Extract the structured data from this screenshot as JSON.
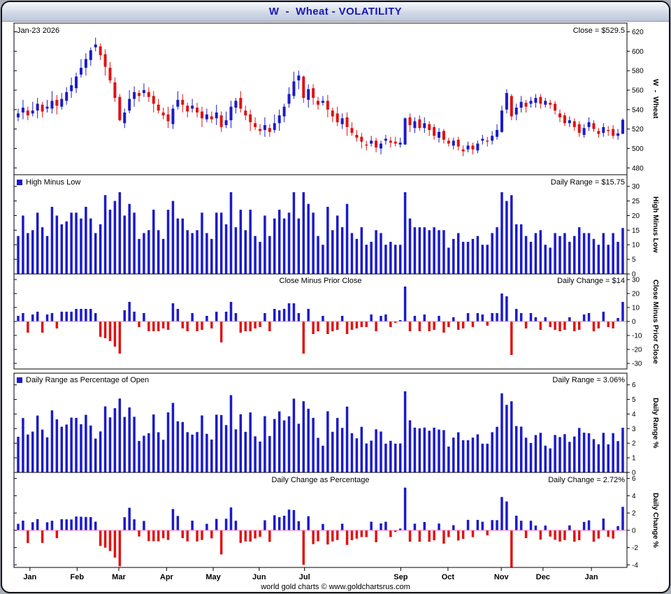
{
  "window": {
    "title": "W  -  Wheat - VOLATILITY"
  },
  "footer": "world gold charts © www.goldchartsrus.com",
  "colors": {
    "up": "#1b1bc8",
    "down": "#e01212",
    "zero_line": "#ff7dbe",
    "title_text": "#1717b8",
    "panel_border": "#000000"
  },
  "panels": {
    "price": {
      "date_label": "Jan-23 2026",
      "value_label": "Close = $529.5",
      "axis_title": "W  -  Wheat",
      "ticks": [
        620,
        600,
        580,
        560,
        540,
        520,
        500,
        480
      ]
    },
    "range": {
      "legend": "High Minus Low",
      "value_label": "Daily Range = $15.75",
      "axis_title": "High Minus Low",
      "ticks": [
        30,
        25,
        20,
        15,
        10,
        5,
        0
      ]
    },
    "change": {
      "legend": "Close Minus Prior Close",
      "value_label": "Daily Change = $14",
      "axis_title": "Close Minus Prior Close",
      "ticks": [
        30,
        20,
        10,
        0,
        -10,
        -20,
        -30
      ]
    },
    "range_pct": {
      "legend": "Daily Range as Percentage of Open",
      "value_label": "Daily Range = 3.06%",
      "axis_title": "Daily Range %",
      "ticks": [
        6,
        5,
        4,
        3,
        2,
        1,
        0
      ]
    },
    "change_pct": {
      "legend": "Daily Change as Percentage",
      "value_label": "Daily Change = 2.72%",
      "axis_title": "Daily Change %",
      "ticks": [
        6,
        4,
        2,
        0,
        -2,
        -4
      ]
    }
  },
  "chart_data": {
    "type": "ohlc-multi-panel",
    "title": "W - Wheat - VOLATILITY",
    "last_date": "Jan-23 2026",
    "last_close": 529.5,
    "months": [
      {
        "label": "Jan",
        "fx": 0.026
      },
      {
        "label": "Feb",
        "fx": 0.103
      },
      {
        "label": "Mar",
        "fx": 0.171
      },
      {
        "label": "Apr",
        "fx": 0.249
      },
      {
        "label": "May",
        "fx": 0.325
      },
      {
        "label": "Jun",
        "fx": 0.4
      },
      {
        "label": "Jul",
        "fx": 0.474
      },
      {
        "label": "Sep",
        "fx": 0.631
      },
      {
        "label": "Oct",
        "fx": 0.708
      },
      {
        "label": "Nov",
        "fx": 0.795
      },
      {
        "label": "Dec",
        "fx": 0.863
      },
      {
        "label": "Jan",
        "fx": 0.942
      }
    ],
    "price_panel": {
      "type": "candlestick",
      "ylim": [
        480,
        620
      ],
      "latest_close": 529.5
    },
    "derived_panels": [
      {
        "name": "High Minus Low",
        "type": "bar",
        "formula": "high - low",
        "ylim": [
          0,
          30
        ],
        "latest": 15.75
      },
      {
        "name": "Close Minus Prior Close",
        "type": "bar",
        "formula": "close - prior close",
        "ylim": [
          -30,
          30
        ],
        "latest": 14
      },
      {
        "name": "Daily Range as Percentage of Open",
        "type": "bar",
        "formula": "(high - low) / open * 100",
        "ylim": [
          0,
          6
        ],
        "latest": 3.06
      },
      {
        "name": "Daily Change as Percentage",
        "type": "bar",
        "formula": "(close - prior close) / prior close * 100",
        "ylim": [
          -4,
          6
        ],
        "latest": 2.72
      }
    ],
    "candles_ohlc": [
      [
        532,
        541,
        528,
        536
      ],
      [
        537,
        550,
        530,
        542
      ],
      [
        539,
        543,
        529,
        534
      ],
      [
        536,
        548,
        533,
        539
      ],
      [
        539,
        552,
        531,
        546
      ],
      [
        545,
        548,
        532,
        538
      ],
      [
        541,
        550,
        537,
        543
      ],
      [
        541,
        559,
        536,
        549
      ],
      [
        550,
        555,
        535,
        544
      ],
      [
        543,
        557,
        540,
        551
      ],
      [
        549,
        563,
        545,
        558
      ],
      [
        559,
        573,
        552,
        565
      ],
      [
        562,
        578,
        557,
        574
      ],
      [
        576,
        592,
        573,
        583
      ],
      [
        583,
        598,
        575,
        592
      ],
      [
        591,
        604,
        585,
        601
      ],
      [
        604,
        614,
        600,
        607
      ],
      [
        605,
        608,
        591,
        596
      ],
      [
        597,
        602,
        575,
        584
      ],
      [
        583,
        589,
        567,
        570
      ],
      [
        568,
        573,
        548,
        552
      ],
      [
        553,
        556,
        528,
        529
      ],
      [
        526,
        541,
        521,
        537
      ],
      [
        539,
        560,
        536,
        551
      ],
      [
        551,
        564,
        543,
        558
      ],
      [
        557,
        560,
        548,
        554
      ],
      [
        557,
        567,
        553,
        560
      ],
      [
        558,
        563,
        548,
        553
      ],
      [
        554,
        559,
        537,
        546
      ],
      [
        545,
        551,
        536,
        539
      ],
      [
        537,
        542,
        530,
        534
      ],
      [
        535,
        543,
        521,
        528
      ],
      [
        525,
        545,
        520,
        541
      ],
      [
        543,
        559,
        540,
        550
      ],
      [
        550,
        556,
        537,
        545
      ],
      [
        544,
        547,
        532,
        538
      ],
      [
        541,
        551,
        537,
        544
      ],
      [
        542,
        547,
        532,
        537
      ],
      [
        538,
        543,
        522,
        531
      ],
      [
        530,
        541,
        527,
        535
      ],
      [
        533,
        538,
        526,
        530
      ],
      [
        531,
        545,
        524,
        537
      ],
      [
        534,
        538,
        517,
        522
      ],
      [
        524,
        538,
        521,
        529
      ],
      [
        529,
        549,
        521,
        543
      ],
      [
        542,
        552,
        536,
        549
      ],
      [
        552,
        559,
        537,
        541
      ],
      [
        539,
        544,
        529,
        534
      ],
      [
        535,
        540,
        518,
        527
      ],
      [
        526,
        532,
        519,
        522
      ],
      [
        520,
        525,
        514,
        518
      ],
      [
        519,
        532,
        512,
        524
      ],
      [
        521,
        525,
        512,
        517
      ],
      [
        519,
        535,
        516,
        526
      ],
      [
        526,
        540,
        518,
        534
      ],
      [
        533,
        546,
        527,
        543
      ],
      [
        546,
        563,
        542,
        556
      ],
      [
        554,
        579,
        551,
        569
      ],
      [
        570,
        580,
        561,
        575
      ],
      [
        574,
        575,
        547,
        552
      ],
      [
        550,
        566,
        542,
        561
      ],
      [
        562,
        566,
        545,
        552
      ],
      [
        549,
        553,
        540,
        545
      ],
      [
        547,
        554,
        544,
        549
      ],
      [
        549,
        555,
        532,
        540
      ],
      [
        539,
        542,
        527,
        533
      ],
      [
        536,
        543,
        523,
        527
      ],
      [
        525,
        536,
        520,
        531
      ],
      [
        532,
        537,
        513,
        522
      ],
      [
        521,
        527,
        513,
        516
      ],
      [
        514,
        519,
        507,
        511
      ],
      [
        512,
        516,
        500,
        507
      ],
      [
        504,
        508,
        498,
        503
      ],
      [
        505,
        513,
        502,
        508
      ],
      [
        508,
        511,
        496,
        501
      ],
      [
        500,
        508,
        494,
        505
      ],
      [
        508,
        514,
        504,
        510
      ],
      [
        508,
        512,
        501,
        506
      ],
      [
        507,
        512,
        502,
        505
      ],
      [
        504,
        511,
        501,
        506
      ],
      [
        504,
        532,
        504,
        531
      ],
      [
        532,
        536,
        517,
        524
      ],
      [
        521,
        532,
        516,
        528
      ],
      [
        530,
        534,
        518,
        521
      ],
      [
        521,
        532,
        516,
        526
      ],
      [
        525,
        528,
        513,
        519
      ],
      [
        522,
        525,
        509,
        513
      ],
      [
        511,
        521,
        506,
        517
      ],
      [
        518,
        520,
        505,
        509
      ],
      [
        508,
        511,
        502,
        505
      ],
      [
        503,
        511,
        499,
        508
      ],
      [
        509,
        512,
        498,
        502
      ],
      [
        499,
        503,
        492,
        497
      ],
      [
        499,
        507,
        496,
        503
      ],
      [
        503,
        506,
        494,
        499
      ],
      [
        498,
        508,
        495,
        505
      ],
      [
        508,
        514,
        504,
        510
      ],
      [
        508,
        512,
        502,
        507
      ],
      [
        508,
        518,
        504,
        513
      ],
      [
        512,
        525,
        509,
        519
      ],
      [
        517,
        544,
        516,
        539
      ],
      [
        540,
        561,
        536,
        557
      ],
      [
        554,
        556,
        529,
        533
      ],
      [
        535,
        546,
        529,
        542
      ],
      [
        542,
        554,
        537,
        548
      ],
      [
        547,
        550,
        537,
        543
      ],
      [
        546,
        553,
        542,
        549
      ],
      [
        547,
        556,
        542,
        552
      ],
      [
        553,
        556,
        541,
        546
      ],
      [
        545,
        552,
        542,
        549
      ],
      [
        547,
        550,
        541,
        545
      ],
      [
        546,
        549,
        535,
        539
      ],
      [
        536,
        540,
        527,
        532
      ],
      [
        534,
        537,
        523,
        526
      ],
      [
        526,
        533,
        522,
        529
      ],
      [
        528,
        531,
        518,
        522
      ],
      [
        525,
        528,
        512,
        516
      ],
      [
        514,
        525,
        511,
        521
      ],
      [
        522,
        532,
        518,
        527
      ],
      [
        526,
        529,
        517,
        520
      ],
      [
        518,
        521,
        511,
        515
      ],
      [
        516,
        526,
        512,
        522
      ],
      [
        519,
        523,
        513,
        518
      ],
      [
        520,
        524,
        510,
        513
      ],
      [
        513,
        520,
        509,
        515.5
      ],
      [
        515,
        531,
        515.25,
        529.5
      ]
    ]
  }
}
